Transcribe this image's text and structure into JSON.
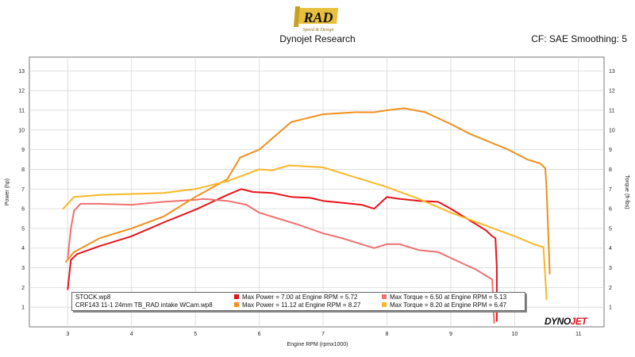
{
  "header": {
    "title": "Dynojet Research",
    "cf_label": "CF: SAE Smoothing: 5",
    "logo": {
      "text": "RAD",
      "subtext": "Speed & Design"
    }
  },
  "brand": {
    "prefix": "DYNO",
    "suffix": "JET"
  },
  "legend": {
    "files": [
      "STOCK.wp8",
      "CRF143 11-1 24mm TB_RAD intake WCam.wp8"
    ],
    "entries": [
      [
        "Max Power = 7.00 at Engine RPM = 5.72",
        "Max Torque = 6.50 at Engine RPM = 5.13"
      ],
      [
        "Max Power = 11.12 at Engine RPM = 8.27",
        "Max Torque = 8.20 at Engine RPM = 6.47"
      ]
    ]
  },
  "colors": {
    "stock_power": "#e8121b",
    "stock_torque": "#f07070",
    "mod_power": "#f0901c",
    "mod_torque": "#f8b828",
    "grid": "#d8d8d8"
  },
  "chart_data": {
    "type": "line",
    "xlabel": "Engine RPM (rpmx1000)",
    "ylabel": "Power (hp)",
    "y2label": "Torque (ft-lbs)",
    "xlim": [
      2.4,
      11.4
    ],
    "ylim": [
      0,
      13.7
    ],
    "xticks": [
      3,
      4,
      5,
      6,
      7,
      8,
      9,
      10,
      11
    ],
    "yticks": [
      1,
      2,
      3,
      4,
      5,
      6,
      7,
      8,
      9,
      10,
      11,
      12,
      13
    ],
    "grid": true,
    "series": [
      {
        "name": "STOCK.wp8 Power",
        "color_key": "stock_power",
        "x": [
          3.0,
          3.05,
          3.15,
          3.5,
          4.0,
          4.5,
          5.0,
          5.5,
          5.72,
          5.9,
          6.2,
          6.5,
          6.8,
          7.0,
          7.3,
          7.6,
          7.8,
          8.0,
          8.2,
          8.5,
          8.8,
          9.0,
          9.2,
          9.4,
          9.55,
          9.65,
          9.7,
          9.72,
          9.72
        ],
        "y": [
          1.9,
          3.4,
          3.7,
          4.1,
          4.6,
          5.3,
          5.95,
          6.7,
          7.0,
          6.85,
          6.8,
          6.6,
          6.55,
          6.4,
          6.3,
          6.2,
          6.0,
          6.6,
          6.5,
          6.4,
          6.35,
          6.0,
          5.6,
          5.2,
          4.9,
          4.6,
          4.5,
          3.0,
          0.3
        ]
      },
      {
        "name": "STOCK.wp8 Torque",
        "color_key": "stock_torque",
        "x": [
          3.0,
          3.05,
          3.1,
          3.2,
          3.5,
          4.0,
          4.5,
          5.0,
          5.13,
          5.5,
          5.8,
          6.0,
          6.3,
          6.6,
          7.0,
          7.3,
          7.6,
          7.8,
          8.0,
          8.2,
          8.5,
          8.8,
          9.0,
          9.2,
          9.4,
          9.55,
          9.65,
          9.68
        ],
        "y": [
          3.5,
          5.0,
          5.9,
          6.25,
          6.25,
          6.2,
          6.35,
          6.45,
          6.5,
          6.4,
          6.2,
          5.8,
          5.5,
          5.2,
          4.75,
          4.5,
          4.2,
          4.0,
          4.2,
          4.2,
          3.9,
          3.8,
          3.5,
          3.2,
          2.9,
          2.6,
          2.4,
          0.2
        ]
      },
      {
        "name": "CRF143 11-1 24mm TB_RAD intake WCam.wp8 Power",
        "color_key": "mod_power",
        "x": [
          2.97,
          3.1,
          3.5,
          4.0,
          4.5,
          5.0,
          5.5,
          5.7,
          6.0,
          6.5,
          7.0,
          7.5,
          7.8,
          8.0,
          8.27,
          8.6,
          9.0,
          9.3,
          9.6,
          9.9,
          10.2,
          10.4,
          10.48,
          10.5,
          10.55
        ],
        "y": [
          3.3,
          3.8,
          4.5,
          5.0,
          5.6,
          6.6,
          7.5,
          8.6,
          9.0,
          10.4,
          10.8,
          10.9,
          10.9,
          11.0,
          11.1,
          10.9,
          10.3,
          9.8,
          9.4,
          9.0,
          8.5,
          8.3,
          8.05,
          7.0,
          2.7
        ]
      },
      {
        "name": "CRF143 11-1 24mm TB_RAD intake WCam.wp8 Torque",
        "color_key": "mod_torque",
        "x": [
          2.93,
          3.1,
          3.5,
          4.0,
          4.5,
          5.0,
          5.5,
          6.0,
          6.2,
          6.47,
          7.0,
          7.5,
          8.0,
          8.5,
          9.0,
          9.5,
          10.0,
          10.3,
          10.45,
          10.48,
          10.5
        ],
        "y": [
          6.0,
          6.6,
          6.7,
          6.75,
          6.8,
          7.0,
          7.4,
          8.0,
          7.95,
          8.2,
          8.1,
          7.6,
          7.1,
          6.5,
          5.8,
          5.2,
          4.6,
          4.2,
          4.05,
          2.5,
          1.4
        ]
      }
    ]
  }
}
